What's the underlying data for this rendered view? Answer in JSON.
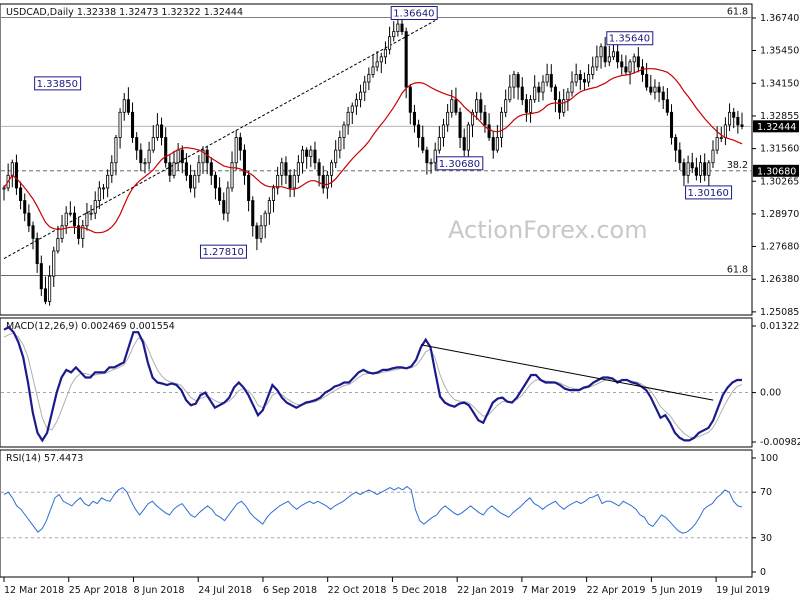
{
  "chart_data": [
    {
      "type": "candlestick",
      "header": "USDCAD,Daily  1.32338 1.32473 1.32322 1.32444",
      "watermark": "ActionForex.com",
      "current_price": "1.32444",
      "y_ticks": [
        "1.36740",
        "1.35450",
        "1.34150",
        "1.32855",
        "1.31560",
        "1.30265",
        "1.28970",
        "1.27680",
        "1.26380",
        "1.25085"
      ],
      "fib_levels": [
        {
          "label": "61.8",
          "value": 1.3676
        },
        {
          "label": "38.2",
          "value": 1.3068
        },
        {
          "label": "61.8",
          "value": 1.2653
        }
      ],
      "highlight_prices": [
        {
          "label": "1.30680",
          "value": 1.3068
        }
      ],
      "annotations": [
        {
          "label": "1.33850",
          "value": 1.3385,
          "x_index": 18
        },
        {
          "label": "1.27810",
          "value": 1.2781,
          "x_index": 58
        },
        {
          "label": "1.36640",
          "value": 1.3664,
          "x_index": 104
        },
        {
          "label": "1.30680",
          "value": 1.3068,
          "x_index": 115
        },
        {
          "label": "1.35640",
          "value": 1.3564,
          "x_index": 156
        },
        {
          "label": "1.30160",
          "value": 1.3016,
          "x_index": 175
        }
      ],
      "closes": [
        1.3,
        1.305,
        1.31,
        1.3,
        1.295,
        1.29,
        1.285,
        1.28,
        1.27,
        1.26,
        1.255,
        1.265,
        1.275,
        1.28,
        1.285,
        1.29,
        1.29,
        1.285,
        1.28,
        1.285,
        1.29,
        1.29,
        1.295,
        1.3,
        1.3,
        1.305,
        1.31,
        1.32,
        1.33,
        1.335,
        1.33,
        1.32,
        1.315,
        1.31,
        1.31,
        1.315,
        1.32,
        1.325,
        1.32,
        1.31,
        1.305,
        1.31,
        1.315,
        1.31,
        1.305,
        1.3,
        1.305,
        1.31,
        1.315,
        1.31,
        1.305,
        1.3,
        1.295,
        1.29,
        1.3,
        1.31,
        1.32,
        1.315,
        1.305,
        1.295,
        1.285,
        1.28,
        1.285,
        1.29,
        1.295,
        1.3,
        1.305,
        1.31,
        1.305,
        1.3,
        1.305,
        1.31,
        1.315,
        1.3125,
        1.315,
        1.31,
        1.305,
        1.3,
        1.305,
        1.31,
        1.315,
        1.32,
        1.325,
        1.33,
        1.3325,
        1.335,
        1.338,
        1.342,
        1.345,
        1.348,
        1.35,
        1.352,
        1.355,
        1.36,
        1.362,
        1.365,
        1.362,
        1.34,
        1.33,
        1.325,
        1.32,
        1.315,
        1.31,
        1.31,
        1.315,
        1.32,
        1.325,
        1.33,
        1.335,
        1.33,
        1.32,
        1.315,
        1.325,
        1.33,
        1.335,
        1.33,
        1.325,
        1.32,
        1.315,
        1.32,
        1.33,
        1.335,
        1.34,
        1.345,
        1.34,
        1.335,
        1.33,
        1.335,
        1.34,
        1.338,
        1.342,
        1.345,
        1.34,
        1.335,
        1.33,
        1.335,
        1.338,
        1.342,
        1.345,
        1.343,
        1.342,
        1.345,
        1.348,
        1.352,
        1.356,
        1.35,
        1.352,
        1.354,
        1.35,
        1.348,
        1.346,
        1.35,
        1.352,
        1.348,
        1.345,
        1.34,
        1.338,
        1.34,
        1.338,
        1.335,
        1.33,
        1.32,
        1.315,
        1.31,
        1.305,
        1.31,
        1.308,
        1.305,
        1.31,
        1.305,
        1.31,
        1.315,
        1.32,
        1.32,
        1.325,
        1.33,
        1.328,
        1.325,
        1.3244
      ]
    },
    {
      "type": "line",
      "header": "MACD(12,26,9) 0.002469 0.001554",
      "y_ticks": [
        "0.013229",
        "0.00",
        "-0.00982"
      ],
      "macd": [
        0.0125,
        0.013,
        0.012,
        0.01,
        0.007,
        0.002,
        -0.004,
        -0.008,
        -0.0095,
        -0.008,
        -0.004,
        0.0,
        0.003,
        0.0045,
        0.004,
        0.005,
        0.004,
        0.003,
        0.003,
        0.004,
        0.004,
        0.004,
        0.005,
        0.005,
        0.0055,
        0.006,
        0.009,
        0.012,
        0.012,
        0.01,
        0.006,
        0.003,
        0.002,
        0.0018,
        0.0015,
        0.0018,
        0.0015,
        0.0005,
        -0.0015,
        -0.0025,
        -0.0022,
        -0.0005,
        0.0,
        -0.0015,
        -0.003,
        -0.0025,
        -0.002,
        -0.001,
        0.001,
        0.002,
        0.001,
        -0.0005,
        -0.0025,
        -0.0045,
        -0.0035,
        -0.001,
        0.0015,
        0.0005,
        -0.001,
        -0.002,
        -0.0025,
        -0.003,
        -0.0025,
        -0.002,
        -0.0018,
        -0.0015,
        -0.001,
        0.0,
        0.0005,
        0.0012,
        0.0015,
        0.002,
        0.002,
        0.003,
        0.004,
        0.0045,
        0.004,
        0.0038,
        0.004,
        0.0045,
        0.0045,
        0.0048,
        0.005,
        0.005,
        0.0048,
        0.0052,
        0.0065,
        0.009,
        0.0105,
        0.009,
        0.004,
        -0.0008,
        -0.002,
        -0.0025,
        -0.0028,
        -0.0022,
        -0.002,
        -0.0025,
        -0.004,
        -0.0055,
        -0.006,
        -0.004,
        -0.002,
        -0.0012,
        -0.001,
        -0.0018,
        -0.002,
        -0.001,
        0.0005,
        0.002,
        0.0035,
        0.0035,
        0.0025,
        0.002,
        0.002,
        0.002,
        0.0015,
        0.0008,
        0.0005,
        0.0005,
        0.0005,
        0.001,
        0.0012,
        0.002,
        0.0025,
        0.003,
        0.003,
        0.0028,
        0.002,
        0.0025,
        0.0025,
        0.002,
        0.0018,
        0.0012,
        0.0005,
        -0.001,
        -0.003,
        -0.005,
        -0.0045,
        -0.006,
        -0.008,
        -0.009,
        -0.0095,
        -0.0095,
        -0.009,
        -0.008,
        -0.0075,
        -0.007,
        -0.0055,
        -0.003,
        -0.0005,
        0.001,
        0.002,
        0.0025,
        0.0025
      ],
      "signal": [
        0.011,
        0.0115,
        0.0118,
        0.011,
        0.0095,
        0.007,
        0.003,
        -0.001,
        -0.005,
        -0.0072,
        -0.0074,
        -0.0058,
        -0.0035,
        -0.001,
        0.0015,
        0.003,
        0.0038,
        0.0038,
        0.0035,
        0.0035,
        0.0037,
        0.0038,
        0.0042,
        0.0046,
        0.005,
        0.0055,
        0.007,
        0.0092,
        0.0108,
        0.0106,
        0.0088,
        0.0065,
        0.0045,
        0.0032,
        0.0024,
        0.002,
        0.0018,
        0.0014,
        0.0002,
        -0.001,
        -0.0016,
        -0.0012,
        -0.0008,
        -0.001,
        -0.0016,
        -0.002,
        -0.002,
        -0.0017,
        -0.0008,
        0.0004,
        0.0008,
        0.0004,
        -0.0008,
        -0.0025,
        -0.003,
        -0.0022,
        -0.0005,
        0.0,
        -0.0004,
        -0.0012,
        -0.0018,
        -0.0023,
        -0.0024,
        -0.0022,
        -0.002,
        -0.0018,
        -0.0014,
        -0.0008,
        -0.0002,
        0.0004,
        0.0009,
        0.0014,
        0.0016,
        0.0022,
        0.003,
        0.0036,
        0.0038,
        0.0038,
        0.0038,
        0.004,
        0.0042,
        0.0044,
        0.0046,
        0.0048,
        0.0048,
        0.0049,
        0.0054,
        0.0066,
        0.0081,
        0.0086,
        0.0068,
        0.0035,
        0.0012,
        -0.0004,
        -0.0014,
        -0.0017,
        -0.0018,
        -0.002,
        -0.0028,
        -0.0038,
        -0.0047,
        -0.0045,
        -0.0035,
        -0.0025,
        -0.0018,
        -0.0018,
        -0.0018,
        -0.0014,
        -0.0006,
        0.0006,
        0.0018,
        0.0025,
        0.0025,
        0.0023,
        0.0022,
        0.0021,
        0.0019,
        0.0014,
        0.001,
        0.0008,
        0.0007,
        0.0008,
        0.001,
        0.0014,
        0.0018,
        0.0023,
        0.0026,
        0.0027,
        0.0024,
        0.0024,
        0.0024,
        0.0023,
        0.0021,
        0.0017,
        0.0011,
        0.0003,
        -0.0011,
        -0.0028,
        -0.0037,
        -0.0046,
        -0.006,
        -0.0072,
        -0.0082,
        -0.0088,
        -0.009,
        -0.0087,
        -0.0083,
        -0.0079,
        -0.0069,
        -0.0052,
        -0.0032,
        -0.0014,
        0.0002,
        0.0012,
        0.0016
      ]
    },
    {
      "type": "line",
      "header": "RSI(14) 57.4473",
      "y_ticks": [
        "100",
        "70",
        "30",
        "0"
      ],
      "rsi": [
        68,
        70,
        65,
        58,
        55,
        50,
        45,
        40,
        35,
        38,
        45,
        55,
        65,
        68,
        62,
        60,
        58,
        62,
        65,
        60,
        58,
        62,
        60,
        65,
        63,
        62,
        68,
        72,
        74,
        70,
        62,
        55,
        50,
        55,
        60,
        62,
        58,
        55,
        52,
        50,
        55,
        58,
        60,
        55,
        50,
        48,
        52,
        55,
        58,
        55,
        50,
        48,
        45,
        50,
        55,
        60,
        62,
        58,
        52,
        48,
        45,
        42,
        48,
        52,
        55,
        58,
        60,
        62,
        58,
        55,
        58,
        60,
        62,
        60,
        62,
        60,
        58,
        55,
        58,
        60,
        62,
        65,
        68,
        70,
        68,
        70,
        72,
        70,
        68,
        70,
        72,
        74,
        72,
        74,
        72,
        75,
        72,
        55,
        45,
        42,
        45,
        48,
        50,
        55,
        58,
        55,
        52,
        50,
        52,
        55,
        58,
        55,
        52,
        50,
        55,
        58,
        55,
        52,
        50,
        48,
        52,
        55,
        58,
        62,
        65,
        60,
        58,
        55,
        58,
        60,
        62,
        58,
        55,
        58,
        60,
        62,
        60,
        62,
        65,
        66,
        68,
        60,
        62,
        62,
        60,
        58,
        62,
        60,
        58,
        55,
        50,
        48,
        42,
        40,
        45,
        50,
        48,
        44,
        40,
        36,
        34,
        35,
        38,
        42,
        48,
        55,
        58,
        60,
        65,
        68,
        72,
        70,
        62,
        58,
        57
      ]
    }
  ],
  "x_axis_labels": [
    "12 Mar 2018",
    "25 Apr 2018",
    "8 Jun 2018",
    "24 Jul 2018",
    "6 Sep 2018",
    "22 Oct 2018",
    "5 Dec 2018",
    "22 Jan 2019",
    "7 Mar 2019",
    "22 Apr 2019",
    "5 Jun 2019",
    "19 Jul 2019"
  ],
  "colors": {
    "bull": "#000000",
    "bear": "#000000",
    "ma": "#cc0000",
    "macd": "#1a1a8c",
    "signal": "#b0b0b0",
    "rsi": "#2f6fd6",
    "trend": "#000000",
    "grid": "#999999",
    "label_border": "#1a1a8c"
  }
}
